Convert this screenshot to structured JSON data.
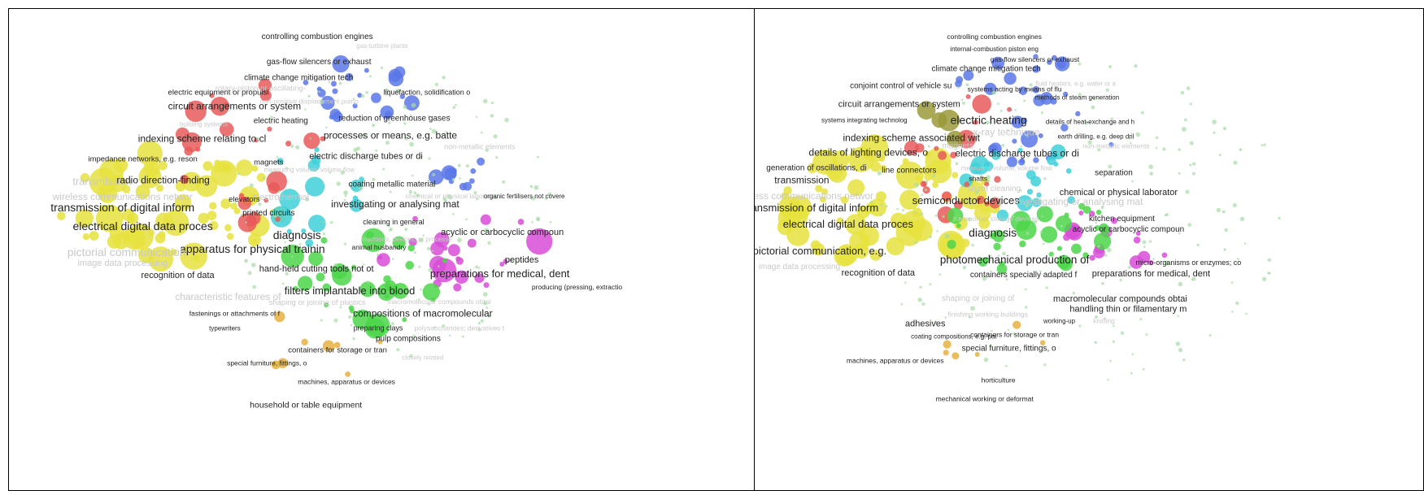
{
  "colors": {
    "yellow": "#e6e23e",
    "green": "#4cd64a",
    "blue": "#5a78e8",
    "cyan": "#3fd0d8",
    "magenta": "#d84cd8",
    "red": "#e85a5a",
    "orange": "#e6b040",
    "olive": "#9a9a3a",
    "lightgreen": "#a8dca8"
  },
  "left": {
    "labels": [
      "controlling combustion engines",
      "gas-turbine plants",
      "gas-flow silencers or exhaust",
      "climate change mitigation tech",
      "electric equipment or propulsi",
      "rotary-piston or oscillating-",
      "liquefaction, solidification o",
      "non-positive displacement pump",
      "circuit arrangements or system",
      "reduction of greenhouse gases",
      "electric heating",
      "building systems",
      "indexing scheme relating to cl",
      "processes or means, e.g. batte",
      "non-metallic elements",
      "impedance networks, e.g. reson",
      "magnets",
      "electric discharge tubes or di",
      "measuring volume, volume flow",
      "transmission",
      "radio direction-finding",
      "coating metallic material",
      "wireless communications networ",
      "electrothermal",
      "chemical or physical laborator",
      "organic fertilisers not covere",
      "elevators",
      "investigating or analysing mat",
      "transmission of digital inform",
      "printed circuits",
      "cleaning in general",
      "electrical digital data proces",
      "diagnosis",
      "acyclic or carbocyclic compoun",
      "machines, devices, or processe",
      "apparatus for physical trainin",
      "animal husbandry",
      "pictorial communication",
      "image data processing",
      "peptides",
      "hand-held cutting tools not ot",
      "preparations for medical, dent",
      "recognition of data",
      "producing (pressing, extractio",
      "filters implantable into blood",
      "characteristic features of",
      "shaping or joining of plastics",
      "macromolecular compounds obtai",
      "fastenings or attachments of f",
      "compositions of macromolecular",
      "typewriters",
      "preparing clays",
      "polysaccharides; derivatives t",
      "pulp compositions",
      "containers for storage or tran",
      "special furniture, fittings, o",
      "closely related",
      "machines, apparatus or devices",
      "household or table equipment"
    ]
  },
  "right": {
    "labels": [
      "controlling combustion engines",
      "internal-combustion piston eng",
      "gas-flow silencers or exhaust",
      "climate change mitigation tech",
      "conjoint control of vehicle su",
      "systems acting by means of flu",
      "fluid heaters, e.g. water or a",
      "methods of steam generation",
      "circuit arrangements or system",
      "systems integrating technolog",
      "electric heating",
      "details of heat-exchange and h",
      "indexing scheme associated wit",
      "x-ray technique",
      "earth drilling, e.g. deep dril",
      "magnets",
      "details of lighting devices, o",
      "electric discharge tubes or di",
      "non-metallic elements",
      "generation of oscillations, di",
      "line connectors",
      "measuring volume, volume flow",
      "separation",
      "transmission",
      "shafts",
      "street cleaning",
      "wireless communications networ",
      "chemical or physical laborator",
      "semiconductor devices",
      "investigating or analysing mat",
      "transmission of digital inform",
      "transport or storage devices",
      "kitchen equipment",
      "electrical digital data proces",
      "diagnosis",
      "acyclic or carbocyclic compoun",
      "pictorial communication, e.g.",
      "photomechanical production of",
      "micro-organisms or enzymes; co",
      "image data processing",
      "recognition of data",
      "containers specially adapted f",
      "preparations for medical, dent",
      "shaping or joining of",
      "macromolecular compounds obtai",
      "finishing working buildings",
      "handling thin or filamentary m",
      "adhesives",
      "working-up",
      "knitting",
      "coating compositions, e.g. pai",
      "containers for storage or tran",
      "special furniture, fittings, o",
      "machines, apparatus or devices",
      "horticulture",
      "mechanical working or deformat"
    ]
  }
}
